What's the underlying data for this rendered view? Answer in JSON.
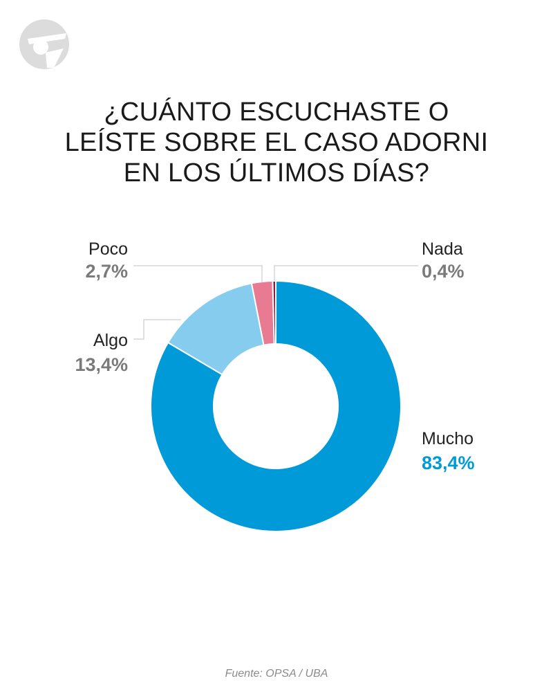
{
  "title_lines": [
    "¿CUÁNTO ESCUCHASTE O",
    "LEÍSTE SOBRE EL CASO ADORNI",
    "EN LOS ÚLTIMOS DÍAS?"
  ],
  "source": "Fuente: OPSA / UBA",
  "logo": "brand-logo",
  "chart_data": {
    "type": "pie",
    "variant": "donut",
    "title": "¿CUÁNTO ESCUCHASTE O LEÍSTE SOBRE EL CASO ADORNI EN LOS ÚLTIMOS DÍAS?",
    "slices": [
      {
        "label": "Mucho",
        "value": 83.4,
        "display": "83,4%",
        "color": "#009ad9",
        "value_color": "#009ad9"
      },
      {
        "label": "Algo",
        "value": 13.4,
        "display": "13,4%",
        "color": "#86ccee",
        "value_color": "#7a7a7a"
      },
      {
        "label": "Poco",
        "value": 2.7,
        "display": "2,7%",
        "color": "#e87a91",
        "value_color": "#7a7a7a"
      },
      {
        "label": "Nada",
        "value": 0.4,
        "display": "0,4%",
        "color": "#8c1d3c",
        "value_color": "#7a7a7a"
      }
    ]
  }
}
